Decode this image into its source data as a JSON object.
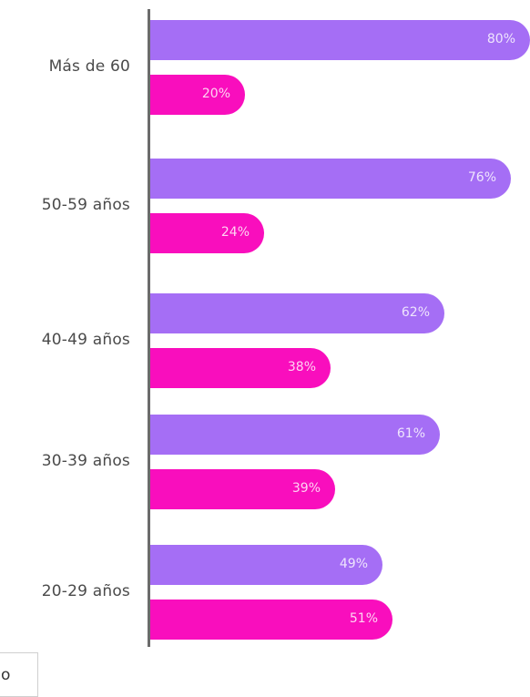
{
  "chart_data": {
    "type": "bar",
    "orientation": "horizontal",
    "categories": [
      "Más de 60",
      "50-59 años",
      "40-49 años",
      "30-39 años",
      "20-29 años"
    ],
    "series": [
      {
        "values": [
          80,
          76,
          62,
          61,
          49
        ],
        "color": "#a56ef5"
      },
      {
        "values": [
          20,
          24,
          38,
          39,
          51
        ],
        "color": "#f90ebd"
      }
    ],
    "value_labels": [
      [
        "80%",
        "76%",
        "62%",
        "61%",
        "49%"
      ],
      [
        "20%",
        "24%",
        "38%",
        "39%",
        "51%"
      ]
    ],
    "xlim": [
      0,
      80
    ],
    "grid": false
  },
  "legend": {
    "visible_text": "o"
  }
}
